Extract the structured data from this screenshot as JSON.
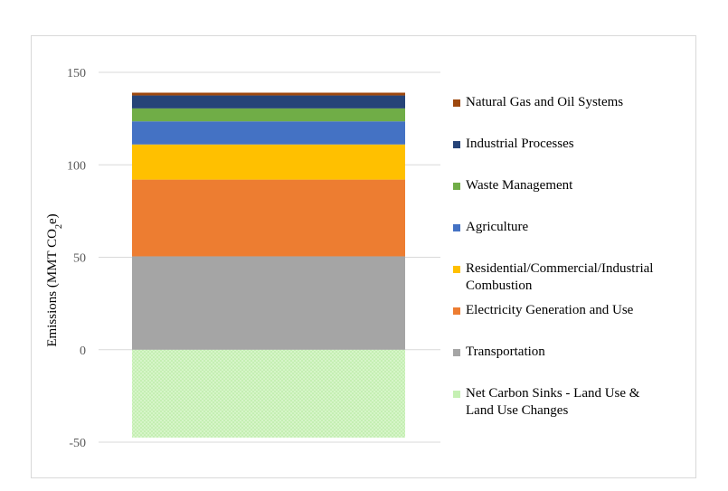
{
  "chart_data": {
    "type": "bar",
    "stacked": true,
    "title": "",
    "xlabel": "",
    "ylabel": "Emissions  (MMT CO",
    "ylabel_sub": "2",
    "ylabel_end": "e)",
    "ylim": [
      -50,
      150
    ],
    "yticks": [
      150,
      100,
      50,
      0,
      -50
    ],
    "grid": true,
    "legend_position": "right",
    "series": [
      {
        "name": "Net Carbon Sinks - Land Use & Land Use Changes",
        "value": -47.5,
        "color": "#c5f0b3",
        "pattern": "dotted"
      },
      {
        "name": "Transportation",
        "value": 50.5,
        "color": "#a5a5a5"
      },
      {
        "name": "Electricity Generation and Use",
        "value": 41.5,
        "color": "#ed7d31"
      },
      {
        "name": "Residential/Commercial/Industrial Combustion",
        "value": 19,
        "color": "#ffc000"
      },
      {
        "name": "Agriculture",
        "value": 12.5,
        "color": "#4472c4"
      },
      {
        "name": "Waste Management",
        "value": 7,
        "color": "#70ad47"
      },
      {
        "name": "Industrial Processes",
        "value": 7,
        "color": "#264478"
      },
      {
        "name": "Natural Gas and Oil Systems",
        "value": 1.5,
        "color": "#9e480e"
      }
    ]
  },
  "legend": [
    {
      "lines": [
        "Natural Gas and Oil Systems"
      ],
      "color": "#9e480e"
    },
    {
      "lines": [
        "Industrial Processes"
      ],
      "color": "#264478"
    },
    {
      "lines": [
        "Waste Management"
      ],
      "color": "#70ad47"
    },
    {
      "lines": [
        "Agriculture"
      ],
      "color": "#4472c4"
    },
    {
      "lines": [
        "Residential/Commercial/Industrial",
        "Combustion"
      ],
      "color": "#ffc000"
    },
    {
      "lines": [
        "Electricity Generation and Use"
      ],
      "color": "#ed7d31"
    },
    {
      "lines": [
        "Transportation"
      ],
      "color": "#a5a5a5"
    },
    {
      "lines": [
        "Net Carbon Sinks - Land Use &",
        "Land Use Changes"
      ],
      "color": "#c5f0b3"
    }
  ]
}
